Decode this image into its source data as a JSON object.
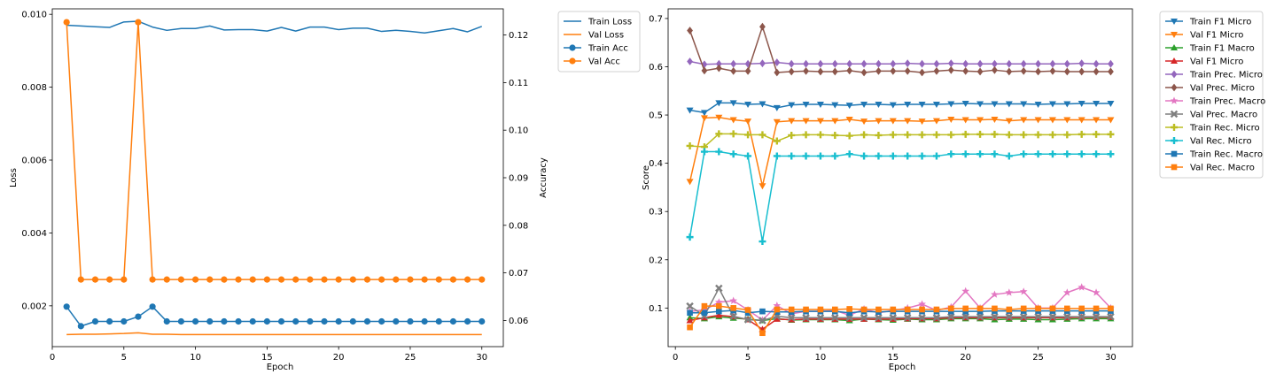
{
  "chart_data": [
    {
      "type": "line",
      "xlabel": "Epoch",
      "ylabel": "Loss",
      "y2label": "Accuracy",
      "xlim": [
        0,
        31.5
      ],
      "ylim": [
        0.00088,
        0.01015
      ],
      "y2lim": [
        0.0545,
        0.1255
      ],
      "xticks": [
        0,
        5,
        10,
        15,
        20,
        25,
        30
      ],
      "yticks": [
        0.002,
        0.004,
        0.006,
        0.008,
        0.01
      ],
      "ytick_labels": [
        "0.002",
        "0.004",
        "0.006",
        "0.008",
        "0.010"
      ],
      "y2ticks": [
        0.06,
        0.07,
        0.08,
        0.09,
        0.1,
        0.11,
        0.12
      ],
      "y2tick_labels": [
        "0.06",
        "0.07",
        "0.08",
        "0.09",
        "0.10",
        "0.11",
        "0.12"
      ],
      "legend_position": "outside-right",
      "x": [
        1,
        2,
        3,
        4,
        5,
        6,
        7,
        8,
        9,
        10,
        11,
        12,
        13,
        14,
        15,
        16,
        17,
        18,
        19,
        20,
        21,
        22,
        23,
        24,
        25,
        26,
        27,
        28,
        29,
        30
      ],
      "series": [
        {
          "name": "Train Loss",
          "axis": "left",
          "marker": "none",
          "color": "#1f77b4",
          "values": [
            0.0097,
            0.00968,
            0.00966,
            0.00964,
            0.00979,
            0.00981,
            0.00965,
            0.00956,
            0.00961,
            0.00961,
            0.00968,
            0.00957,
            0.00958,
            0.00958,
            0.00954,
            0.00964,
            0.00954,
            0.00965,
            0.00965,
            0.00958,
            0.00962,
            0.00962,
            0.00953,
            0.00956,
            0.00953,
            0.00949,
            0.00955,
            0.00961,
            0.00952,
            0.00967
          ]
        },
        {
          "name": "Val Loss",
          "axis": "left",
          "marker": "none",
          "color": "#ff7f0e",
          "values": [
            0.00121,
            0.00122,
            0.00122,
            0.00123,
            0.00124,
            0.00126,
            0.00122,
            0.00122,
            0.00121,
            0.00121,
            0.00121,
            0.00121,
            0.00121,
            0.00121,
            0.00121,
            0.00121,
            0.00121,
            0.00121,
            0.00121,
            0.00121,
            0.00121,
            0.00121,
            0.00121,
            0.00121,
            0.00121,
            0.00121,
            0.00121,
            0.00121,
            0.00121,
            0.00121
          ]
        },
        {
          "name": "Train Acc",
          "axis": "right",
          "marker": "circle",
          "color": "#1f77b4",
          "values": [
            0.0629,
            0.0588,
            0.0598,
            0.0598,
            0.0598,
            0.0608,
            0.0629,
            0.0598,
            0.0598,
            0.0598,
            0.0598,
            0.0598,
            0.0598,
            0.0598,
            0.0598,
            0.0598,
            0.0598,
            0.0598,
            0.0598,
            0.0598,
            0.0598,
            0.0598,
            0.0598,
            0.0598,
            0.0598,
            0.0598,
            0.0598,
            0.0598,
            0.0598,
            0.0598
          ]
        },
        {
          "name": "Val Acc",
          "axis": "right",
          "marker": "circle",
          "color": "#ff7f0e",
          "values": [
            0.1227,
            0.0686,
            0.0686,
            0.0686,
            0.0686,
            0.1227,
            0.0686,
            0.0686,
            0.0686,
            0.0686,
            0.0686,
            0.0686,
            0.0686,
            0.0686,
            0.0686,
            0.0686,
            0.0686,
            0.0686,
            0.0686,
            0.0686,
            0.0686,
            0.0686,
            0.0686,
            0.0686,
            0.0686,
            0.0686,
            0.0686,
            0.0686,
            0.0686,
            0.0686
          ]
        }
      ]
    },
    {
      "type": "line",
      "xlabel": "Epoch",
      "ylabel": "Score",
      "xlim": [
        -0.5,
        31.5
      ],
      "ylim": [
        0.02,
        0.72
      ],
      "xticks": [
        0,
        5,
        10,
        15,
        20,
        25,
        30
      ],
      "yticks": [
        0.1,
        0.2,
        0.3,
        0.4,
        0.5,
        0.6,
        0.7
      ],
      "ytick_labels": [
        "0.1",
        "0.2",
        "0.3",
        "0.4",
        "0.5",
        "0.6",
        "0.7"
      ],
      "legend_position": "outside-right",
      "x": [
        1,
        2,
        3,
        4,
        5,
        6,
        7,
        8,
        9,
        10,
        11,
        12,
        13,
        14,
        15,
        16,
        17,
        18,
        19,
        20,
        21,
        22,
        23,
        24,
        25,
        26,
        27,
        28,
        29,
        30
      ],
      "series": [
        {
          "name": "Train F1 Micro",
          "marker": "tri-down",
          "color": "#1f77b4",
          "values": [
            0.51,
            0.505,
            0.525,
            0.525,
            0.522,
            0.523,
            0.515,
            0.521,
            0.522,
            0.522,
            0.521,
            0.52,
            0.522,
            0.522,
            0.521,
            0.522,
            0.522,
            0.522,
            0.523,
            0.524,
            0.523,
            0.523,
            0.523,
            0.523,
            0.522,
            0.523,
            0.523,
            0.524,
            0.524,
            0.524
          ]
        },
        {
          "name": "Val F1 Micro",
          "marker": "tri-down",
          "color": "#ff7f0e",
          "values": [
            0.362,
            0.494,
            0.495,
            0.49,
            0.487,
            0.353,
            0.486,
            0.488,
            0.488,
            0.488,
            0.488,
            0.491,
            0.487,
            0.488,
            0.488,
            0.488,
            0.487,
            0.488,
            0.491,
            0.49,
            0.49,
            0.491,
            0.488,
            0.49,
            0.49,
            0.49,
            0.49,
            0.49,
            0.49,
            0.49
          ]
        },
        {
          "name": "Train F1 Macro",
          "marker": "tri-up",
          "color": "#2ca02c",
          "values": [
            0.08,
            0.078,
            0.082,
            0.079,
            0.077,
            0.074,
            0.078,
            0.075,
            0.076,
            0.076,
            0.076,
            0.074,
            0.077,
            0.076,
            0.075,
            0.077,
            0.076,
            0.076,
            0.078,
            0.078,
            0.078,
            0.076,
            0.077,
            0.077,
            0.076,
            0.076,
            0.077,
            0.078,
            0.078,
            0.078
          ]
        },
        {
          "name": "Val F1 Micro",
          "marker": "tri-up",
          "color": "#d62728",
          "values": [
            0.074,
            0.08,
            0.085,
            0.082,
            0.076,
            0.056,
            0.077,
            0.076,
            0.077,
            0.077,
            0.077,
            0.077,
            0.077,
            0.077,
            0.077,
            0.078,
            0.078,
            0.078,
            0.08,
            0.08,
            0.08,
            0.08,
            0.08,
            0.08,
            0.08,
            0.08,
            0.08,
            0.081,
            0.081,
            0.081
          ]
        },
        {
          "name": "Train Prec. Micro",
          "marker": "diamond",
          "color": "#9467bd",
          "values": [
            0.611,
            0.605,
            0.606,
            0.606,
            0.606,
            0.607,
            0.609,
            0.606,
            0.606,
            0.606,
            0.606,
            0.606,
            0.606,
            0.606,
            0.606,
            0.607,
            0.606,
            0.606,
            0.607,
            0.606,
            0.606,
            0.606,
            0.606,
            0.606,
            0.606,
            0.606,
            0.606,
            0.607,
            0.606,
            0.606
          ]
        },
        {
          "name": "Val Prec. Micro",
          "marker": "diamond",
          "color": "#8c564b",
          "values": [
            0.675,
            0.592,
            0.597,
            0.591,
            0.591,
            0.683,
            0.588,
            0.59,
            0.591,
            0.59,
            0.59,
            0.592,
            0.588,
            0.591,
            0.591,
            0.591,
            0.588,
            0.591,
            0.593,
            0.591,
            0.59,
            0.593,
            0.59,
            0.591,
            0.59,
            0.591,
            0.59,
            0.59,
            0.59,
            0.59
          ]
        },
        {
          "name": "Train Prec. Macro",
          "marker": "star",
          "color": "#e377c2",
          "values": [
            0.093,
            0.096,
            0.112,
            0.115,
            0.096,
            0.075,
            0.105,
            0.088,
            0.093,
            0.093,
            0.095,
            0.085,
            0.098,
            0.09,
            0.095,
            0.1,
            0.108,
            0.095,
            0.102,
            0.135,
            0.1,
            0.128,
            0.132,
            0.134,
            0.1,
            0.1,
            0.132,
            0.143,
            0.132,
            0.1
          ]
        },
        {
          "name": "Val Prec. Macro",
          "marker": "x",
          "color": "#7f7f7f",
          "values": [
            0.104,
            0.084,
            0.141,
            0.083,
            0.076,
            0.074,
            0.083,
            0.08,
            0.08,
            0.08,
            0.08,
            0.08,
            0.08,
            0.08,
            0.08,
            0.08,
            0.08,
            0.08,
            0.082,
            0.082,
            0.082,
            0.082,
            0.082,
            0.082,
            0.082,
            0.082,
            0.082,
            0.082,
            0.082,
            0.082
          ]
        },
        {
          "name": "Train Rec. Micro",
          "marker": "plus",
          "color": "#bcbd22",
          "values": [
            0.436,
            0.434,
            0.461,
            0.461,
            0.459,
            0.459,
            0.446,
            0.458,
            0.459,
            0.459,
            0.458,
            0.457,
            0.459,
            0.458,
            0.459,
            0.459,
            0.459,
            0.459,
            0.459,
            0.46,
            0.46,
            0.46,
            0.459,
            0.459,
            0.459,
            0.459,
            0.459,
            0.46,
            0.46,
            0.46
          ]
        },
        {
          "name": "Val Rec. Micro",
          "marker": "plus",
          "color": "#17becf",
          "values": [
            0.247,
            0.424,
            0.424,
            0.419,
            0.415,
            0.238,
            0.415,
            0.415,
            0.415,
            0.415,
            0.415,
            0.419,
            0.415,
            0.415,
            0.415,
            0.415,
            0.415,
            0.415,
            0.419,
            0.419,
            0.419,
            0.419,
            0.415,
            0.419,
            0.419,
            0.419,
            0.419,
            0.419,
            0.419,
            0.419
          ]
        },
        {
          "name": "Train Rec. Macro",
          "marker": "square",
          "color": "#1f77b4",
          "values": [
            0.09,
            0.09,
            0.093,
            0.095,
            0.09,
            0.093,
            0.092,
            0.092,
            0.093,
            0.093,
            0.093,
            0.09,
            0.093,
            0.092,
            0.093,
            0.093,
            0.093,
            0.093,
            0.093,
            0.093,
            0.093,
            0.094,
            0.094,
            0.094,
            0.094,
            0.094,
            0.094,
            0.094,
            0.094,
            0.094
          ]
        },
        {
          "name": "Val Rec. Macro",
          "marker": "square",
          "color": "#ff7f0e",
          "values": [
            0.06,
            0.104,
            0.104,
            0.1,
            0.096,
            0.048,
            0.097,
            0.097,
            0.097,
            0.097,
            0.097,
            0.098,
            0.097,
            0.097,
            0.097,
            0.097,
            0.097,
            0.097,
            0.099,
            0.099,
            0.099,
            0.099,
            0.097,
            0.099,
            0.099,
            0.099,
            0.099,
            0.099,
            0.099,
            0.099
          ]
        }
      ]
    }
  ]
}
